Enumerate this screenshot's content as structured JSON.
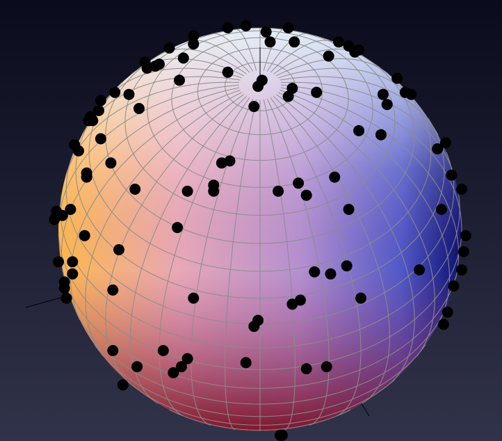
{
  "chart_data": {
    "type": "scatter",
    "color": "#000000",
    "xlim": [
      -1.1,
      1.1
    ],
    "ylim": [
      -1.1,
      1.1
    ],
    "x": [
      -0.33,
      -0.33,
      -0.16,
      -0.07,
      0.03,
      0.05,
      0.14,
      0.17,
      0.39,
      0.44,
      0.47,
      0.49,
      0.34,
      -0.38,
      -0.45,
      -0.57,
      -0.56,
      -0.5,
      -0.52,
      -0.4,
      -0.16,
      0.01,
      -0.01,
      0.16,
      0.14,
      0.28,
      -0.03,
      -0.6,
      -0.65,
      -0.72,
      -0.79,
      -0.8,
      -0.84,
      -0.83,
      -0.85,
      -0.79,
      -0.92,
      -0.9,
      -0.74,
      -0.86,
      -0.86,
      0.68,
      0.61,
      0.63,
      0.72,
      0.75,
      0.49,
      0.6,
      0.88,
      0.92,
      0.95,
      1.0,
      0.9,
      1.02,
      1.01,
      1.0,
      0.96,
      0.93,
      0.91,
      0.79,
      0.5,
      0.43,
      0.35,
      0.27,
      0.2,
      0.16,
      0.44,
      0.37,
      0.23,
      0.19,
      0.09,
      -0.19,
      -0.15,
      -0.23,
      -0.23,
      -0.36,
      -0.62,
      -0.41,
      -0.7,
      -0.87,
      -1.01,
      -1.02,
      -0.98,
      -0.94,
      -1.0,
      -0.93,
      -0.93,
      -0.97,
      -0.97,
      -0.96,
      -0.73,
      -0.33,
      -0.01,
      -0.03,
      -0.73,
      -0.48,
      -0.36,
      -0.39,
      -0.43,
      -0.61,
      -0.68,
      -0.07,
      0.23,
      0.33,
      0.1,
      0.11
    ],
    "y": [
      0.96,
      0.92,
      1.0,
      1.01,
      0.98,
      0.93,
      1.0,
      0.93,
      0.93,
      0.91,
      0.88,
      0.89,
      0.86,
      0.85,
      0.9,
      0.83,
      0.8,
      0.82,
      0.81,
      0.74,
      0.78,
      0.74,
      0.71,
      0.7,
      0.66,
      0.68,
      0.61,
      0.6,
      0.67,
      0.68,
      0.64,
      0.59,
      0.56,
      0.54,
      0.54,
      0.45,
      0.42,
      0.39,
      0.33,
      0.28,
      0.26,
      0.75,
      0.67,
      0.62,
      0.68,
      0.67,
      0.49,
      0.47,
      0.4,
      0.43,
      0.27,
      0.2,
      0.1,
      -0.03,
      -0.11,
      -0.2,
      -0.28,
      -0.41,
      -0.47,
      -0.2,
      -0.34,
      -0.18,
      -0.22,
      -0.21,
      -0.35,
      -0.37,
      0.1,
      0.26,
      0.17,
      0.23,
      0.19,
      0.33,
      0.34,
      0.22,
      0.19,
      0.19,
      0.2,
      0.01,
      -0.1,
      -0.03,
      0.09,
      0.05,
      0.07,
      0.1,
      -0.16,
      -0.16,
      -0.22,
      -0.26,
      -0.29,
      -0.34,
      -0.3,
      -0.34,
      -0.45,
      -0.48,
      -0.6,
      -0.6,
      -0.64,
      -0.68,
      -0.71,
      -0.68,
      -0.77,
      -0.66,
      -0.69,
      -0.68,
      -1.02,
      -1.02
    ]
  }
}
